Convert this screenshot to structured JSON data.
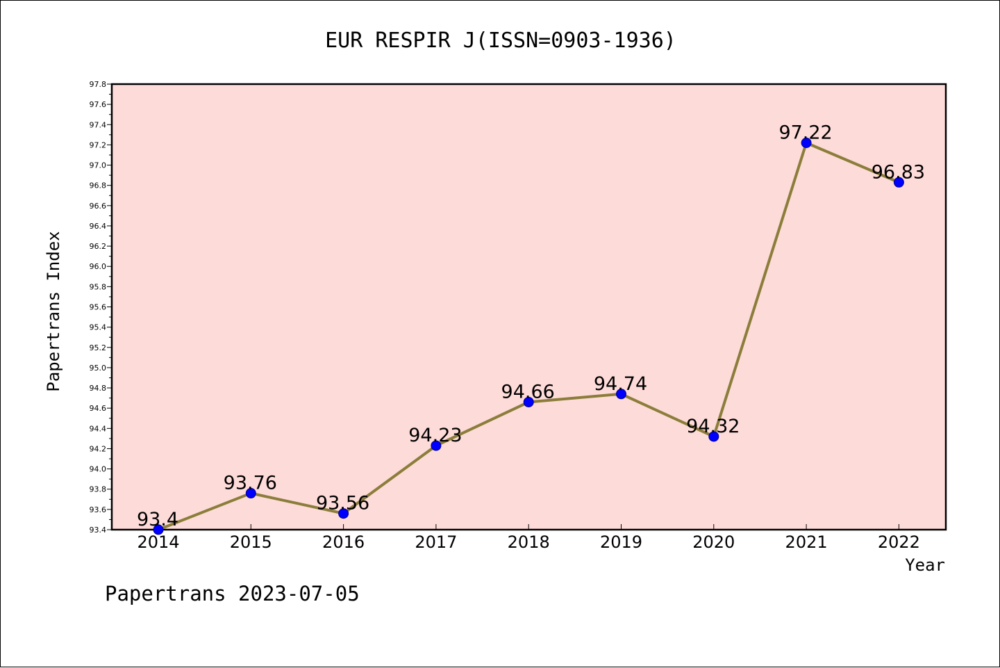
{
  "chart_data": {
    "type": "line",
    "title": "EUR RESPIR J(ISSN=0903-1936)",
    "xlabel": "Year",
    "ylabel": "Papertrans Index",
    "x": [
      "2014",
      "2015",
      "2016",
      "2017",
      "2018",
      "2019",
      "2020",
      "2021",
      "2022"
    ],
    "values": [
      93.4,
      93.76,
      93.56,
      94.23,
      94.66,
      94.74,
      94.32,
      97.22,
      96.83
    ],
    "data_labels": [
      "93.4",
      "93.76",
      "93.56",
      "94.23",
      "94.66",
      "94.74",
      "94.32",
      "97.22",
      "96.83"
    ],
    "ylim": [
      93.4,
      97.8
    ],
    "yticks": [
      "93.4",
      "93.6",
      "93.8",
      "94.0",
      "94.2",
      "94.4",
      "94.6",
      "94.8",
      "95.0",
      "95.2",
      "95.4",
      "95.6",
      "95.8",
      "96.0",
      "96.2",
      "96.4",
      "96.6",
      "96.8",
      "97.0",
      "97.2",
      "97.4",
      "97.6",
      "97.8"
    ],
    "grid": false,
    "colors": {
      "plot_background": "#fddbd9",
      "line": "#8b7d3a",
      "marker": "#0000ff"
    }
  },
  "footer": "Papertrans 2023-07-05"
}
